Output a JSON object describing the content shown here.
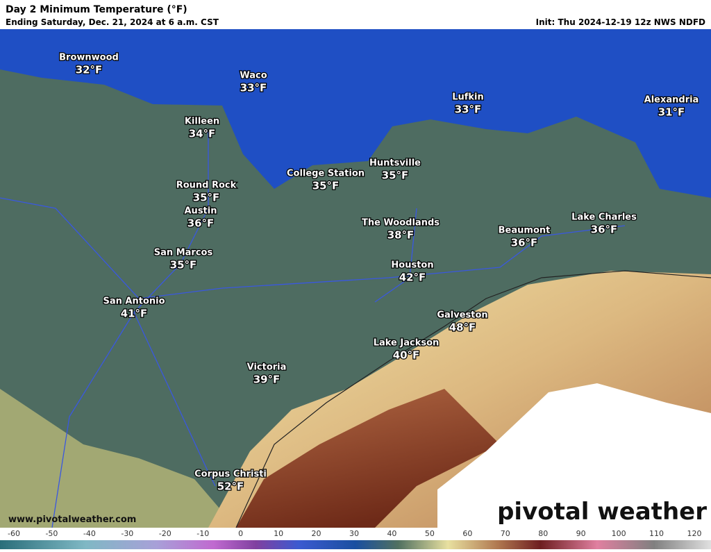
{
  "header": {
    "title": "Day 2 Minimum Temperature (°F)",
    "subtitle": "Ending Saturday, Dec. 21, 2024 at 6 a.m. CST",
    "init": "Init: Thu 2024-12-19 12z NWS NDFD"
  },
  "cities": [
    {
      "name": "Brownwood",
      "temp": "32°F"
    },
    {
      "name": "Waco",
      "temp": "33°F"
    },
    {
      "name": "Killeen",
      "temp": "34°F"
    },
    {
      "name": "Lufkin",
      "temp": "33°F"
    },
    {
      "name": "Alexandria",
      "temp": "31°F"
    },
    {
      "name": "College Station",
      "temp": "35°F"
    },
    {
      "name": "Huntsville",
      "temp": "35°F"
    },
    {
      "name": "Round Rock",
      "temp": "35°F"
    },
    {
      "name": "Austin",
      "temp": "36°F"
    },
    {
      "name": "The Woodlands",
      "temp": "38°F"
    },
    {
      "name": "Beaumont",
      "temp": "36°F"
    },
    {
      "name": "Lake Charles",
      "temp": "36°F"
    },
    {
      "name": "San Marcos",
      "temp": "35°F"
    },
    {
      "name": "Houston",
      "temp": "42°F"
    },
    {
      "name": "San Antonio",
      "temp": "41°F"
    },
    {
      "name": "Galveston",
      "temp": "48°F"
    },
    {
      "name": "Lake Jackson",
      "temp": "40°F"
    },
    {
      "name": "Victoria",
      "temp": "39°F"
    },
    {
      "name": "Corpus Christi",
      "temp": "52°F"
    }
  ],
  "website": "www.pivotalweather.com",
  "logo": "pivotal weather",
  "colorbar": {
    "ticks": [
      -60,
      -50,
      -40,
      -30,
      -20,
      -10,
      0,
      10,
      20,
      30,
      40,
      50,
      60,
      70,
      80,
      90,
      100,
      110,
      120
    ]
  }
}
